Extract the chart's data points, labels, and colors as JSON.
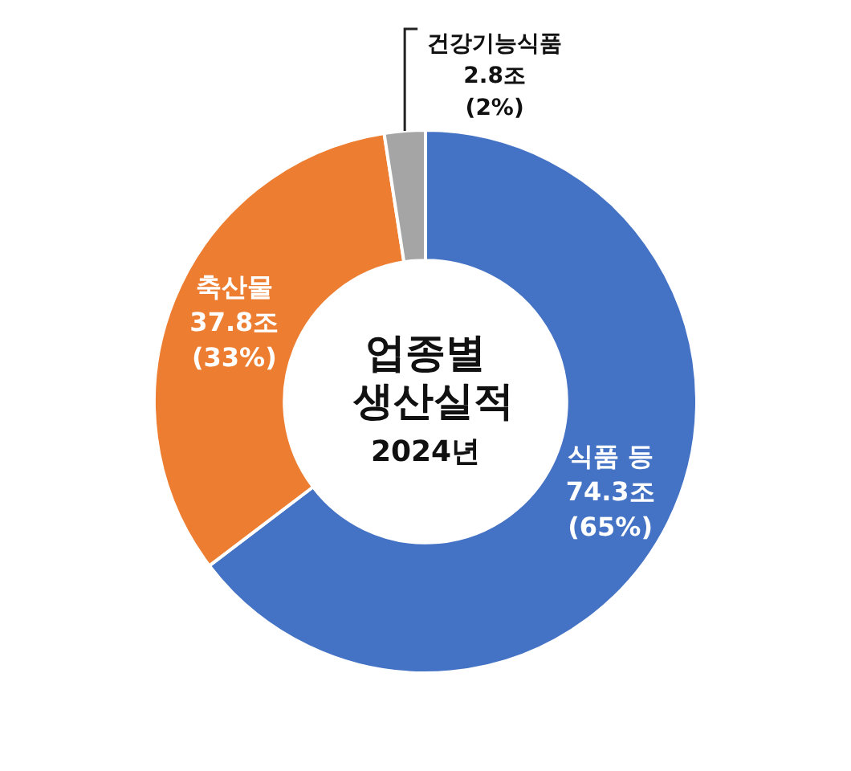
{
  "chart_data": {
    "type": "donut",
    "title": "업종별 생산실적",
    "subtitle": "2024년",
    "categories": [
      "식품 등",
      "축산물",
      "건강기능식품"
    ],
    "values": [
      74.3,
      37.8,
      2.8
    ],
    "value_labels": [
      "74.3조\n(65%)",
      "37.8조\n(33%)",
      "2.8조\n(2%)"
    ],
    "colors": [
      "#4472c4",
      "#ed7d31",
      "#a5a5a5"
    ],
    "legend": false
  }
}
